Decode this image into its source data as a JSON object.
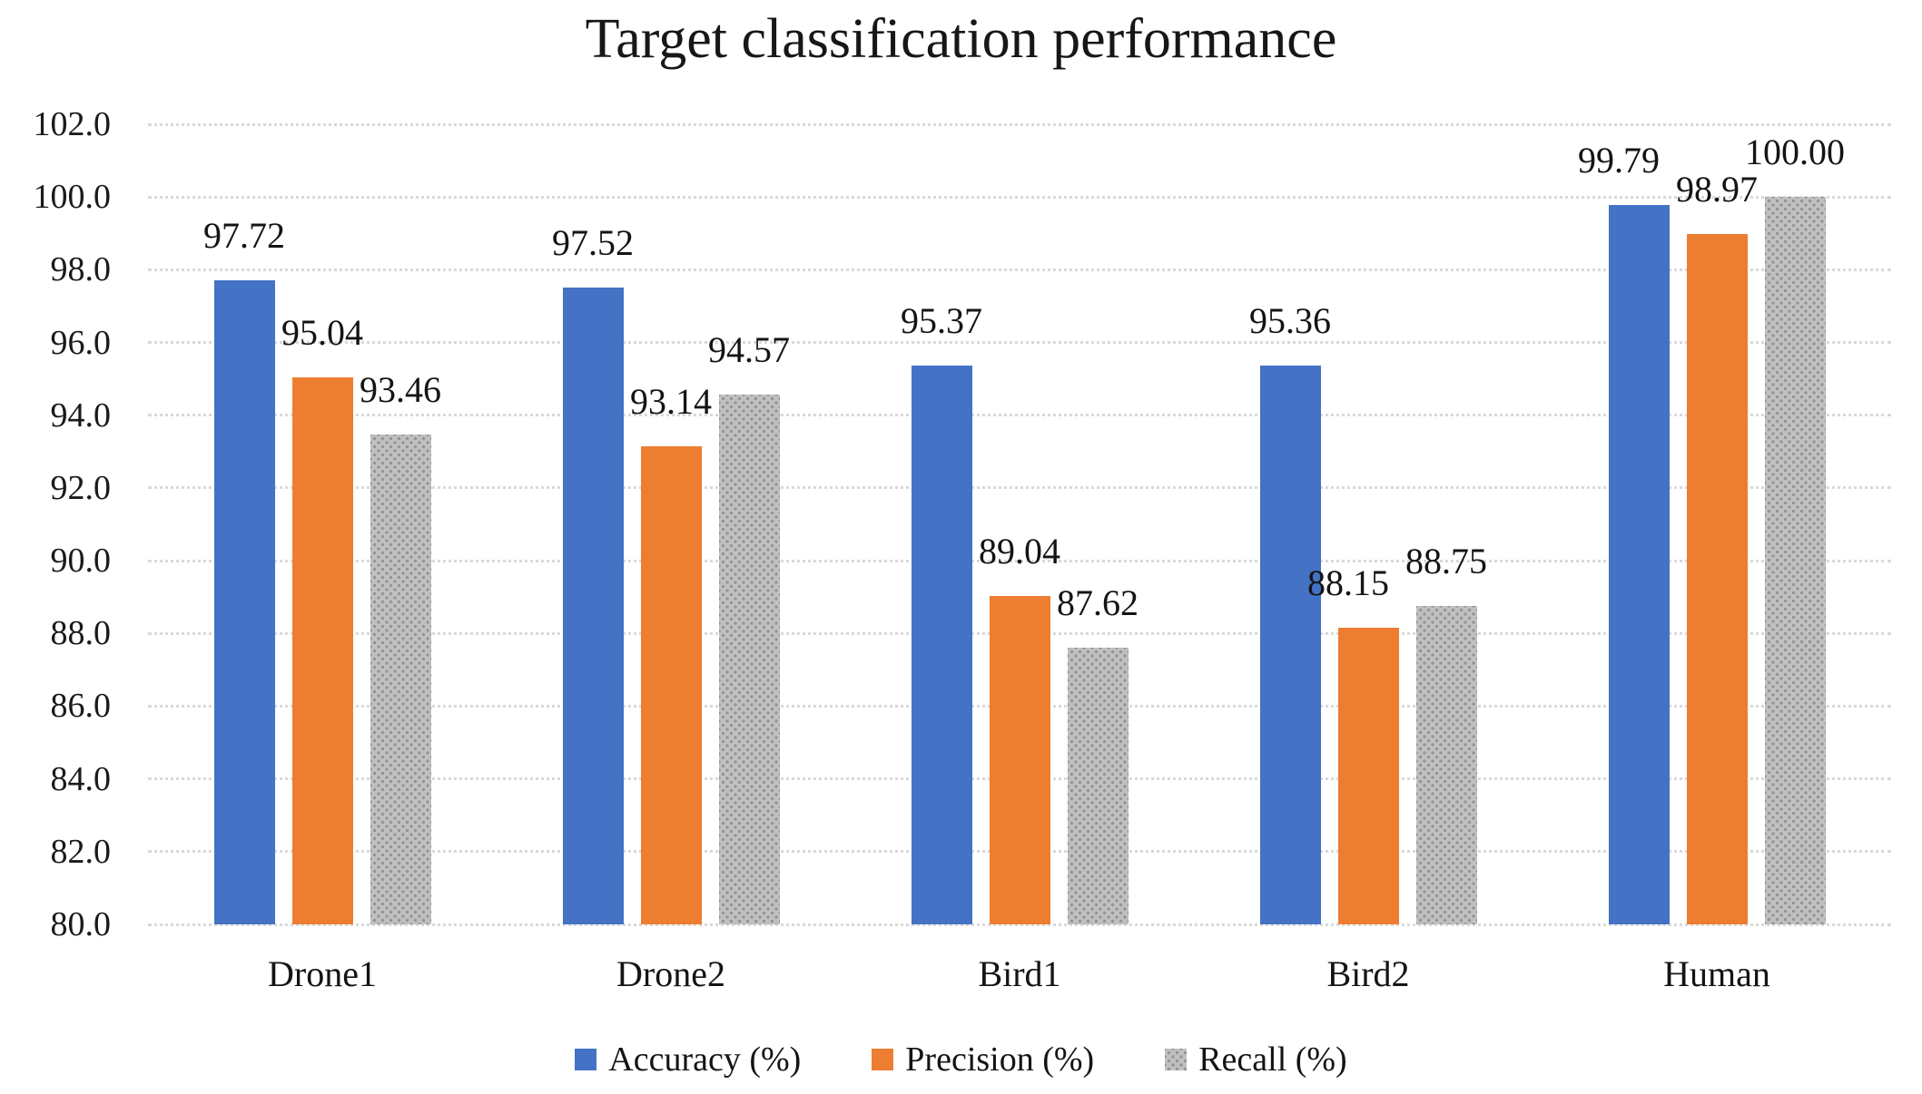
{
  "chart_data": {
    "type": "bar",
    "title": "Target classification performance",
    "categories": [
      "Drone1",
      "Drone2",
      "Bird1",
      "Bird2",
      "Human"
    ],
    "series": [
      {
        "name": "Accuracy (%)",
        "color": "#4472c4",
        "fill": "solid",
        "values": [
          97.72,
          97.52,
          95.37,
          95.36,
          99.79
        ],
        "labels": [
          "97.72",
          "97.52",
          "95.37",
          "95.36",
          "99.79"
        ]
      },
      {
        "name": "Precision (%)",
        "color": "#ed7d31",
        "fill": "solid",
        "values": [
          95.04,
          93.14,
          89.04,
          88.15,
          98.97
        ],
        "labels": [
          "95.04",
          "93.14",
          "89.04",
          "88.15",
          "98.97"
        ]
      },
      {
        "name": "Recall (%)",
        "color": "#c0c0c0",
        "fill": "stipple",
        "stipple_dot_color": "#949494",
        "values": [
          93.46,
          94.57,
          87.62,
          88.75,
          100.0
        ],
        "labels": [
          "93.46",
          "94.57",
          "87.62",
          "88.75",
          "100.00"
        ]
      }
    ],
    "ylim": [
      80,
      102
    ],
    "ytick_step": 2,
    "ytick_labels": [
      "102.0",
      "100.0",
      "98.0",
      "96.0",
      "94.0",
      "92.0",
      "90.0",
      "88.0",
      "86.0",
      "84.0",
      "82.0",
      "80.0"
    ],
    "grid": "horizontal-dotted",
    "gridline_color": "#d9d9d9",
    "legend_position": "bottom",
    "value_labels": "outside-end"
  }
}
